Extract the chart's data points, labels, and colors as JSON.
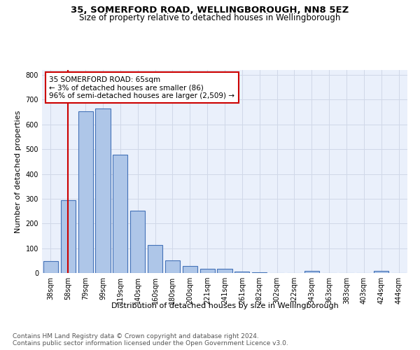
{
  "title1": "35, SOMERFORD ROAD, WELLINGBOROUGH, NN8 5EZ",
  "title2": "Size of property relative to detached houses in Wellingborough",
  "xlabel": "Distribution of detached houses by size in Wellingborough",
  "ylabel": "Number of detached properties",
  "categories": [
    "38sqm",
    "58sqm",
    "79sqm",
    "99sqm",
    "119sqm",
    "140sqm",
    "160sqm",
    "180sqm",
    "200sqm",
    "221sqm",
    "241sqm",
    "261sqm",
    "282sqm",
    "302sqm",
    "322sqm",
    "343sqm",
    "363sqm",
    "383sqm",
    "403sqm",
    "424sqm",
    "444sqm"
  ],
  "values": [
    48,
    295,
    652,
    665,
    478,
    252,
    113,
    50,
    27,
    18,
    18,
    6,
    3,
    0,
    0,
    8,
    0,
    0,
    0,
    9,
    0
  ],
  "bar_color": "#aec6e8",
  "bar_edge_color": "#4472b8",
  "bar_edge_width": 0.8,
  "vline_x": 1,
  "vline_color": "#cc0000",
  "annotation_line1": "35 SOMERFORD ROAD: 65sqm",
  "annotation_line2": "← 3% of detached houses are smaller (86)",
  "annotation_line3": "96% of semi-detached houses are larger (2,509) →",
  "annotation_box_color": "#cc0000",
  "ylim": [
    0,
    820
  ],
  "yticks": [
    0,
    100,
    200,
    300,
    400,
    500,
    600,
    700,
    800
  ],
  "grid_color": "#d0d8e8",
  "bg_color": "#eaf0fb",
  "footnote": "Contains HM Land Registry data © Crown copyright and database right 2024.\nContains public sector information licensed under the Open Government Licence v3.0.",
  "title1_fontsize": 9.5,
  "title2_fontsize": 8.5,
  "xlabel_fontsize": 8,
  "ylabel_fontsize": 8,
  "tick_fontsize": 7,
  "annot_fontsize": 7.5,
  "footnote_fontsize": 6.5
}
